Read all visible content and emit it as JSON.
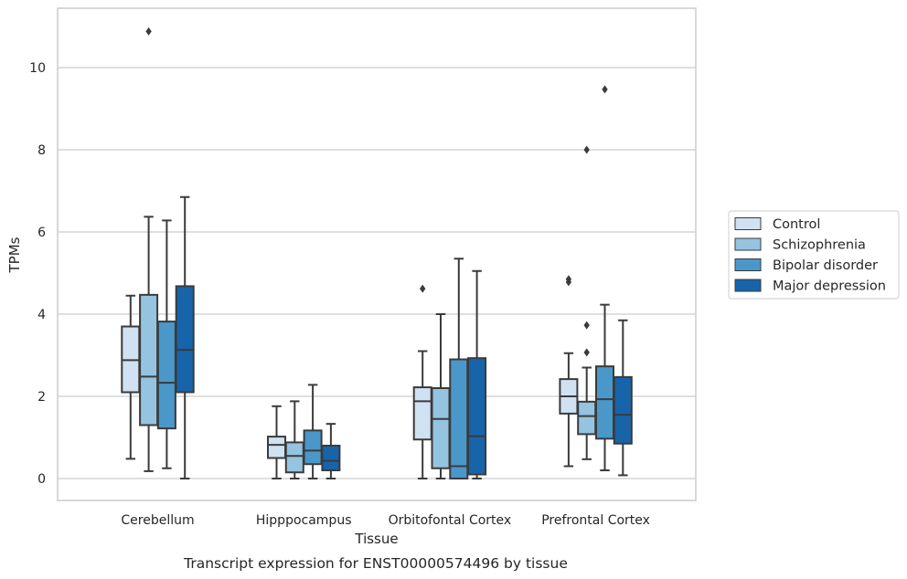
{
  "chart_data": {
    "type": "box",
    "title": "",
    "caption": "Transcript expression for ENST00000574496 by tissue",
    "xlabel": "Tissue",
    "ylabel": "TPMs",
    "ylim": [
      -0.5,
      11.5
    ],
    "yticks": [
      0,
      2,
      4,
      6,
      8,
      10
    ],
    "grid": "horizontal",
    "legend_position": "right",
    "categories": [
      "Cerebellum",
      "Hipppocampus",
      "Orbitofontal Cortex",
      "Prefrontal Cortex"
    ],
    "series": [
      {
        "name": "Control",
        "color": "#d0e1f2",
        "boxes": [
          {
            "whislo": 0.48,
            "q1": 2.1,
            "med": 2.88,
            "q3": 3.7,
            "whishi": 4.45,
            "fliers": []
          },
          {
            "whislo": 0.0,
            "q1": 0.5,
            "med": 0.82,
            "q3": 1.02,
            "whishi": 1.76,
            "fliers": []
          },
          {
            "whislo": 0.0,
            "q1": 0.95,
            "med": 1.88,
            "q3": 2.22,
            "whishi": 3.1,
            "fliers": [
              4.62
            ]
          },
          {
            "whislo": 0.3,
            "q1": 1.58,
            "med": 2.0,
            "q3": 2.42,
            "whishi": 3.05,
            "fliers": [
              4.78,
              4.85
            ]
          }
        ]
      },
      {
        "name": "Schizophrenia",
        "color": "#94c4df",
        "boxes": [
          {
            "whislo": 0.18,
            "q1": 1.3,
            "med": 2.48,
            "q3": 4.47,
            "whishi": 6.37,
            "fliers": [
              10.88
            ]
          },
          {
            "whislo": 0.0,
            "q1": 0.15,
            "med": 0.55,
            "q3": 0.88,
            "whishi": 1.88,
            "fliers": []
          },
          {
            "whislo": 0.0,
            "q1": 0.25,
            "med": 1.45,
            "q3": 2.2,
            "whishi": 4.0,
            "fliers": []
          },
          {
            "whislo": 0.47,
            "q1": 1.08,
            "med": 1.52,
            "q3": 1.87,
            "whishi": 2.7,
            "fliers": [
              3.07,
              3.73,
              8.0
            ]
          }
        ]
      },
      {
        "name": "Bipolar disorder",
        "color": "#4a98c9",
        "boxes": [
          {
            "whislo": 0.25,
            "q1": 1.22,
            "med": 2.33,
            "q3": 3.82,
            "whishi": 6.28,
            "fliers": []
          },
          {
            "whislo": 0.0,
            "q1": 0.35,
            "med": 0.68,
            "q3": 1.17,
            "whishi": 2.28,
            "fliers": []
          },
          {
            "whislo": 0.0,
            "q1": 0.0,
            "med": 0.3,
            "q3": 2.9,
            "whishi": 5.35,
            "fliers": []
          },
          {
            "whislo": 0.2,
            "q1": 0.97,
            "med": 1.93,
            "q3": 2.73,
            "whishi": 4.23,
            "fliers": [
              9.47
            ]
          }
        ]
      },
      {
        "name": "Major depression",
        "color": "#1764ab",
        "boxes": [
          {
            "whislo": 0.0,
            "q1": 2.1,
            "med": 3.13,
            "q3": 4.68,
            "whishi": 6.85,
            "fliers": []
          },
          {
            "whislo": 0.0,
            "q1": 0.2,
            "med": 0.43,
            "q3": 0.8,
            "whishi": 1.33,
            "fliers": []
          },
          {
            "whislo": 0.0,
            "q1": 0.1,
            "med": 1.03,
            "q3": 2.93,
            "whishi": 5.05,
            "fliers": []
          },
          {
            "whislo": 0.08,
            "q1": 0.85,
            "med": 1.55,
            "q3": 2.47,
            "whishi": 3.85,
            "fliers": []
          }
        ]
      }
    ]
  }
}
